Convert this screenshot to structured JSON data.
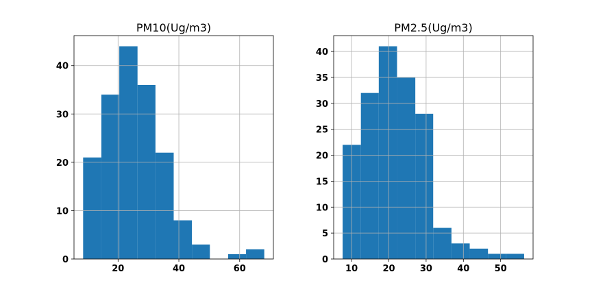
{
  "colors": {
    "bar": "#1f77b4",
    "grid": "#b0b0b0"
  },
  "chart_data": [
    {
      "type": "bar",
      "title": "PM10(Ug/m3)",
      "xlabel": "",
      "ylabel": "",
      "bins": [
        [
          8.5,
          14.5
        ],
        [
          14.5,
          20.4
        ],
        [
          20.4,
          26.4
        ],
        [
          26.4,
          32.3
        ],
        [
          32.3,
          38.3
        ],
        [
          38.3,
          44.3
        ],
        [
          44.3,
          50.2
        ],
        [
          50.2,
          56.2
        ],
        [
          56.2,
          62.1
        ],
        [
          62.1,
          68.1
        ]
      ],
      "values": [
        21,
        34,
        44,
        36,
        22,
        8,
        3,
        0,
        1,
        2
      ],
      "xticks": [
        20,
        40,
        60
      ],
      "yticks": [
        0,
        10,
        20,
        30,
        40
      ],
      "xlim": [
        5.5,
        71.1
      ],
      "ylim": [
        0,
        46.2
      ],
      "grid": true
    },
    {
      "type": "bar",
      "title": "PM2.5(Ug/m3)",
      "xlabel": "",
      "ylabel": "",
      "bins": [
        [
          7.6,
          12.5
        ],
        [
          12.5,
          17.3
        ],
        [
          17.3,
          22.2
        ],
        [
          22.2,
          27.1
        ],
        [
          27.1,
          31.9
        ],
        [
          31.9,
          36.8
        ],
        [
          36.8,
          41.7
        ],
        [
          41.7,
          46.6
        ],
        [
          46.6,
          51.4
        ],
        [
          51.4,
          56.3
        ]
      ],
      "values": [
        22,
        32,
        41,
        35,
        28,
        6,
        3,
        2,
        1,
        1
      ],
      "xticks": [
        10,
        20,
        30,
        40,
        50
      ],
      "yticks": [
        0,
        5,
        10,
        15,
        20,
        25,
        30,
        35,
        40
      ],
      "xlim": [
        5.2,
        58.7
      ],
      "ylim": [
        0,
        43.05
      ],
      "grid": true
    }
  ]
}
